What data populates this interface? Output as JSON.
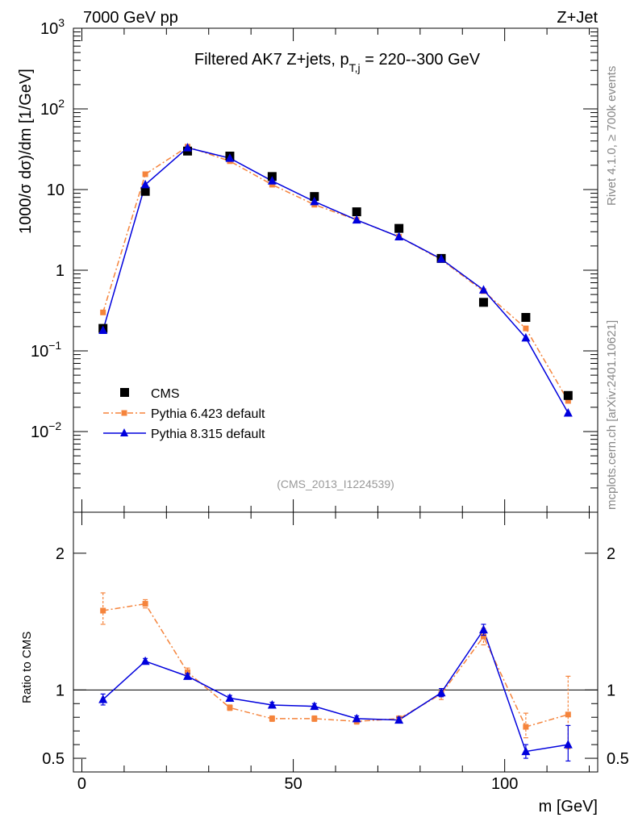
{
  "header": {
    "energy": "7000 GeV pp",
    "process": "Z+Jet",
    "side_info": "Rivet 4.1.0, ≥ 700k events",
    "side_source": "mcplots.cern.ch [arXiv:2401.10621]"
  },
  "colors": {
    "cms": "#000000",
    "pythia6": "#f5843c",
    "pythia8": "#0000dd"
  },
  "chart_data": [
    {
      "type": "scatter+line",
      "title": "Filtered AK7 Z+jets, p_{T,j} = 220--300 GeV",
      "title_main": "Filtered AK7 Z+jets, p",
      "title_sub": "T,j",
      "title_tail": " = 220--300 GeV",
      "watermark": "(CMS_2013_I1224539)",
      "ylabel": "1000/σ  dσ)/dm [1/GeV]",
      "yscale": "log",
      "ylim": [
        0.001,
        1000
      ],
      "xlim": [
        -2,
        122
      ],
      "y_ticks": [
        {
          "v": 1000,
          "base": "10",
          "exp": "3"
        },
        {
          "v": 100,
          "base": "10",
          "exp": "2"
        },
        {
          "v": 10,
          "base": "10",
          "exp": ""
        },
        {
          "v": 1,
          "base": "1",
          "exp": ""
        },
        {
          "v": 0.1,
          "base": "10",
          "exp": "−1"
        },
        {
          "v": 0.01,
          "base": "10",
          "exp": "−2"
        }
      ],
      "x": [
        5,
        15,
        25,
        35,
        45,
        55,
        65,
        75,
        85,
        95,
        105,
        115
      ],
      "series": [
        {
          "name": "CMS",
          "style": "square",
          "values": [
            0.19,
            9.5,
            30,
            26,
            14.5,
            8.2,
            5.3,
            3.3,
            1.4,
            0.4,
            0.26,
            0.028
          ]
        },
        {
          "name": "Pythia 6.423 default",
          "style": "dashdot-square",
          "values": [
            0.3,
            15.5,
            34,
            22.5,
            11.5,
            6.5,
            4.2,
            2.6,
            1.35,
            0.55,
            0.19,
            0.024
          ]
        },
        {
          "name": "Pythia 8.315 default",
          "style": "line-triangle",
          "values": [
            0.18,
            11.5,
            33,
            24.5,
            12.8,
            7.1,
            4.2,
            2.6,
            1.38,
            0.57,
            0.145,
            0.017
          ]
        }
      ]
    },
    {
      "type": "line",
      "ylabel": "Ratio to CMS",
      "xlabel": "m [GeV]",
      "ylim": [
        0.4,
        2.3
      ],
      "xlim": [
        -2,
        122
      ],
      "x_ticks": [
        "0",
        "50",
        "100"
      ],
      "x_tick_values": [
        0,
        50,
        100
      ],
      "y_ticks": [
        "0.5",
        "1",
        "2"
      ],
      "y_tick_values": [
        0.5,
        1,
        2
      ],
      "x": [
        5,
        15,
        25,
        35,
        45,
        55,
        65,
        75,
        85,
        95,
        105,
        115
      ],
      "series": [
        {
          "name": "Pythia 6.423 default",
          "values": [
            1.58,
            1.63,
            1.13,
            0.87,
            0.79,
            0.79,
            0.77,
            0.79,
            0.97,
            1.39,
            0.73,
            0.82
          ],
          "err_up": [
            0.13,
            0.03,
            0.03,
            0.02,
            0.02,
            0.02,
            0.02,
            0.02,
            0.04,
            0.06,
            0.1,
            0.28
          ],
          "err_dn": [
            0.1,
            0.03,
            0.03,
            0.02,
            0.02,
            0.02,
            0.02,
            0.02,
            0.04,
            0.06,
            0.08,
            0.25
          ]
        },
        {
          "name": "Pythia 8.315 default",
          "values": [
            0.93,
            1.21,
            1.1,
            0.94,
            0.89,
            0.88,
            0.79,
            0.78,
            0.98,
            1.44,
            0.55,
            0.6
          ],
          "err_up": [
            0.04,
            0.02,
            0.02,
            0.02,
            0.02,
            0.02,
            0.02,
            0.02,
            0.03,
            0.04,
            0.05,
            0.14
          ],
          "err_dn": [
            0.04,
            0.02,
            0.02,
            0.02,
            0.02,
            0.02,
            0.02,
            0.02,
            0.03,
            0.04,
            0.05,
            0.12
          ]
        }
      ]
    }
  ]
}
